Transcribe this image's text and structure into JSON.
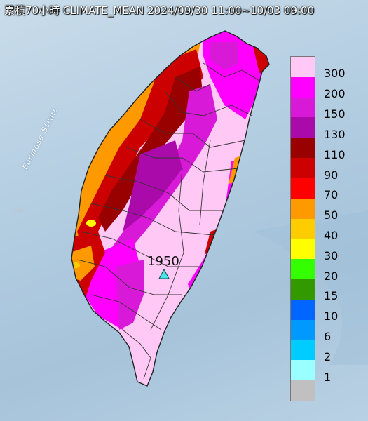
{
  "title": "累積70小時 CLIMATE_MEAN 2024/09/30 11:00~10/03 09:00",
  "strait_label": "Formosa Strait",
  "station": {
    "value": "1950",
    "marker": "triangle-icon",
    "marker_color": "#44e6e6"
  },
  "legend": [
    {
      "label": "300",
      "color": "#ffc8f5"
    },
    {
      "label": "200",
      "color": "#ff00ff"
    },
    {
      "label": "150",
      "color": "#d81ad8"
    },
    {
      "label": "130",
      "color": "#aa0aaa"
    },
    {
      "label": "110",
      "color": "#990000"
    },
    {
      "label": "90",
      "color": "#cc0000"
    },
    {
      "label": "70",
      "color": "#ff0000"
    },
    {
      "label": "50",
      "color": "#ff9900"
    },
    {
      "label": "40",
      "color": "#ffcc00"
    },
    {
      "label": "30",
      "color": "#ffff00"
    },
    {
      "label": "20",
      "color": "#33ff00"
    },
    {
      "label": "15",
      "color": "#339900"
    },
    {
      "label": "10",
      "color": "#0066ff"
    },
    {
      "label": "6",
      "color": "#0099ff"
    },
    {
      "label": "2",
      "color": "#00ccff"
    },
    {
      "label": "1",
      "color": "#99ffff"
    },
    {
      "label": "",
      "color": "#c0c0c0"
    }
  ]
}
